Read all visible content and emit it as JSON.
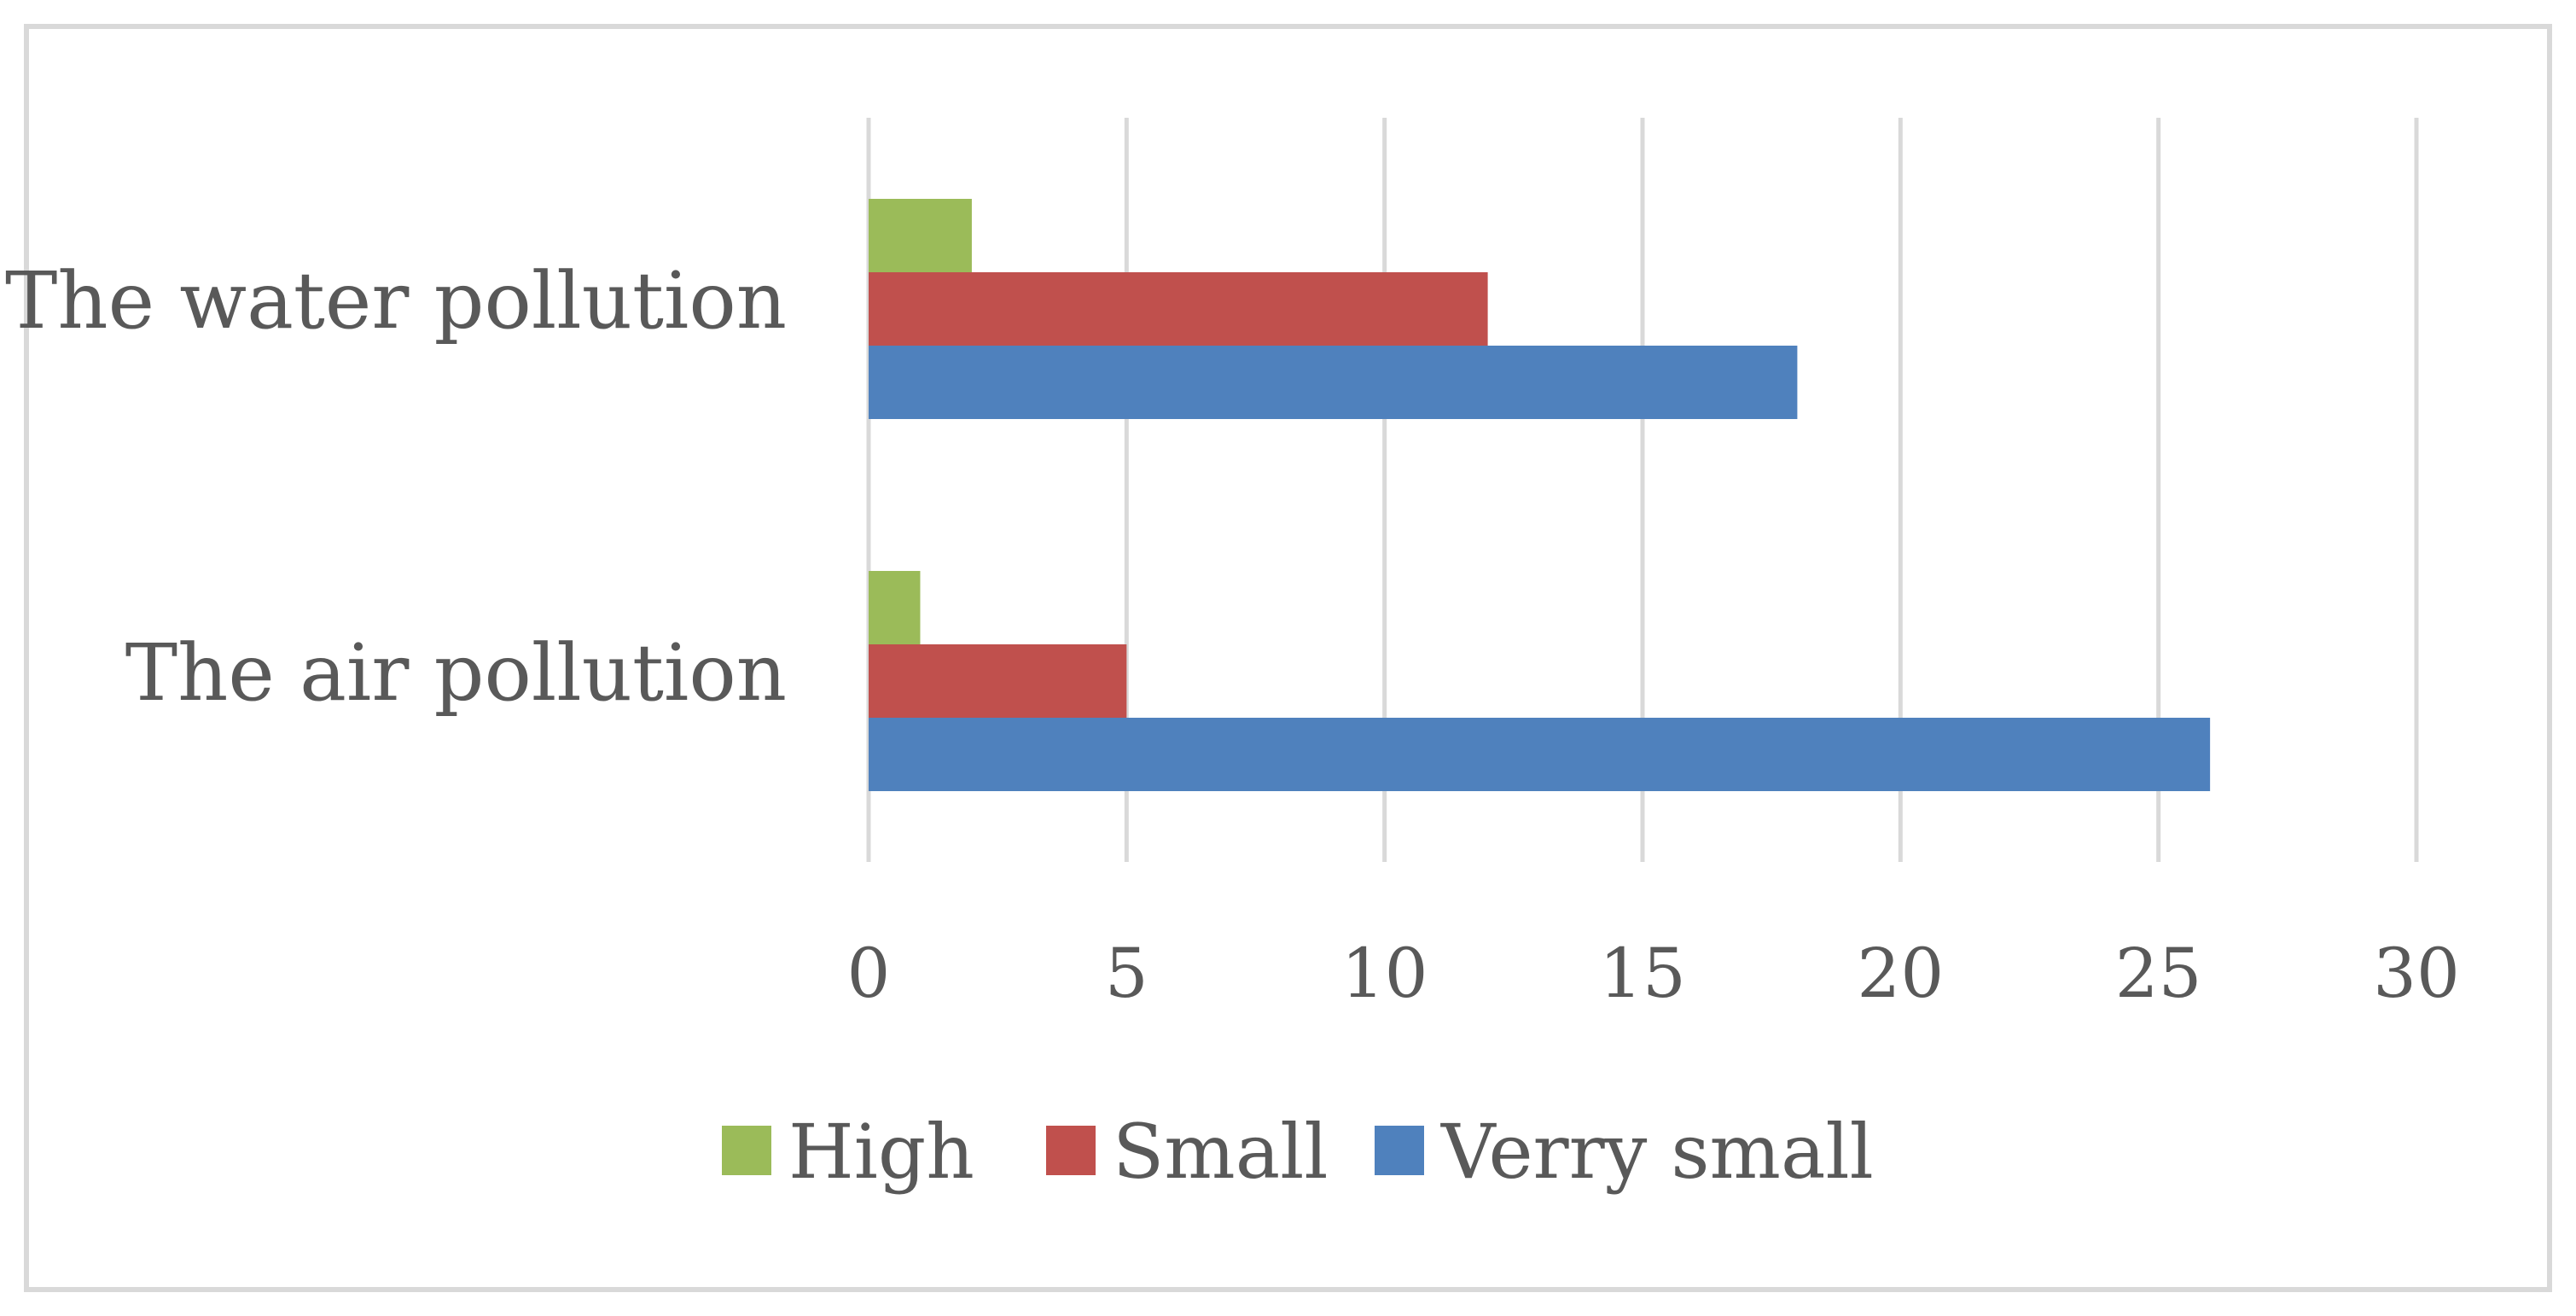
{
  "chart_data": {
    "type": "bar",
    "orientation": "horizontal",
    "title": "",
    "xlabel": "",
    "ylabel": "",
    "categories": [
      "The air pollution",
      "The water pollution"
    ],
    "series": [
      {
        "name": "Verry small",
        "color": "#4f81bd",
        "values": [
          26,
          18
        ]
      },
      {
        "name": "Small",
        "color": "#c0504d",
        "values": [
          5,
          12
        ]
      },
      {
        "name": "High",
        "color": "#9bbb59",
        "values": [
          1,
          2
        ]
      }
    ],
    "xlim": [
      0,
      30
    ],
    "xticks": [
      0,
      5,
      10,
      15,
      20,
      25,
      30
    ],
    "grid": "vertical",
    "legend_position": "bottom",
    "legend_order": [
      "High",
      "Small",
      "Verry small"
    ]
  }
}
